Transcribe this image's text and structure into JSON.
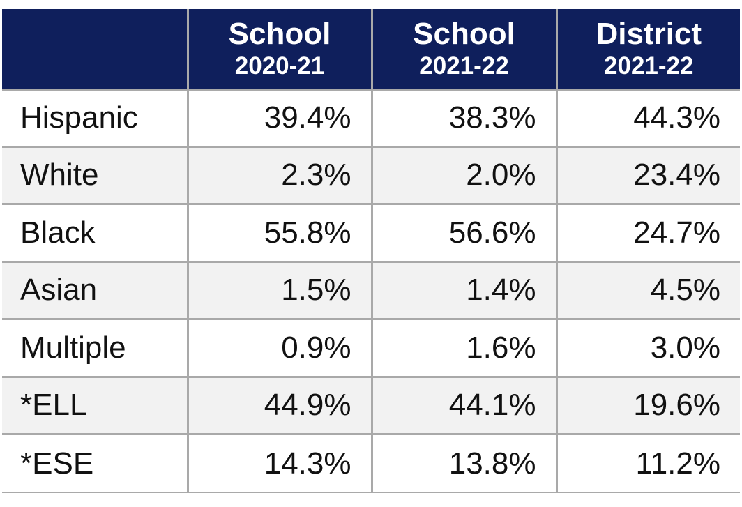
{
  "table": {
    "header": [
      {
        "title": "School",
        "year": "2020-21"
      },
      {
        "title": "School",
        "year": "2021-22"
      },
      {
        "title": "District",
        "year": "2021-22"
      }
    ],
    "rows": [
      [
        "Hispanic",
        "39.4%",
        "38.3%",
        "44.3%"
      ],
      [
        "White",
        "2.3%",
        "2.0%",
        "23.4%"
      ],
      [
        "Black",
        "55.8%",
        "56.6%",
        "24.7%"
      ],
      [
        "Asian",
        "1.5%",
        "1.4%",
        "4.5%"
      ],
      [
        "Multiple",
        "0.9%",
        "1.6%",
        "3.0%"
      ],
      [
        "*ELL",
        "44.9%",
        "44.1%",
        "19.6%"
      ],
      [
        "*ESE",
        "14.3%",
        "13.8%",
        "11.2%"
      ]
    ]
  }
}
